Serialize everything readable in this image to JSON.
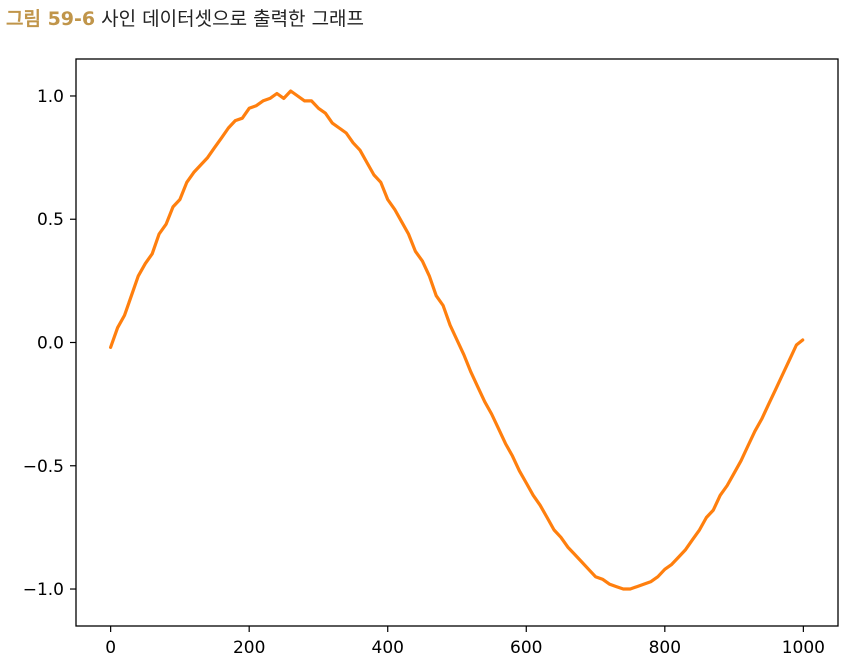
{
  "caption": {
    "figure_number": "그림 59-6",
    "text": "사인 데이터셋으로 출력한 그래프"
  },
  "chart_data": {
    "type": "line",
    "title": "",
    "xlabel": "",
    "ylabel": "",
    "xlim": [
      -50,
      1050
    ],
    "ylim": [
      -1.15,
      1.15
    ],
    "x_ticks": [
      0,
      200,
      400,
      600,
      800,
      1000
    ],
    "x_tick_labels": [
      "0",
      "200",
      "400",
      "600",
      "800",
      "1000"
    ],
    "y_ticks": [
      1.0,
      0.5,
      0.0,
      -0.5,
      -1.0
    ],
    "y_tick_labels": [
      "1.0",
      "0.5",
      "0.0",
      "−0.5",
      "−1.0"
    ],
    "grid": false,
    "legend": "none",
    "series": [
      {
        "color": "#ff7f0e",
        "x": [
          0,
          10,
          20,
          30,
          40,
          50,
          60,
          70,
          80,
          90,
          100,
          110,
          120,
          130,
          140,
          150,
          160,
          170,
          180,
          190,
          200,
          210,
          220,
          230,
          240,
          250,
          260,
          270,
          280,
          290,
          300,
          310,
          320,
          330,
          340,
          350,
          360,
          370,
          380,
          390,
          400,
          410,
          420,
          430,
          440,
          450,
          460,
          470,
          480,
          490,
          500,
          510,
          520,
          530,
          540,
          550,
          560,
          570,
          580,
          590,
          600,
          610,
          620,
          630,
          640,
          650,
          660,
          670,
          680,
          690,
          700,
          710,
          720,
          730,
          740,
          750,
          760,
          770,
          780,
          790,
          800,
          810,
          820,
          830,
          840,
          850,
          860,
          870,
          880,
          890,
          900,
          910,
          920,
          930,
          940,
          950,
          960,
          970,
          980,
          990,
          999
        ],
        "y": [
          -0.02,
          0.06,
          0.11,
          0.19,
          0.27,
          0.32,
          0.36,
          0.44,
          0.48,
          0.55,
          0.58,
          0.65,
          0.69,
          0.72,
          0.75,
          0.79,
          0.83,
          0.87,
          0.9,
          0.91,
          0.95,
          0.96,
          0.98,
          0.99,
          1.01,
          0.99,
          1.02,
          1.0,
          0.98,
          0.98,
          0.95,
          0.93,
          0.89,
          0.87,
          0.85,
          0.81,
          0.78,
          0.73,
          0.68,
          0.65,
          0.58,
          0.54,
          0.49,
          0.44,
          0.37,
          0.33,
          0.27,
          0.19,
          0.15,
          0.07,
          0.01,
          -0.05,
          -0.12,
          -0.18,
          -0.24,
          -0.29,
          -0.35,
          -0.41,
          -0.46,
          -0.52,
          -0.57,
          -0.62,
          -0.66,
          -0.71,
          -0.76,
          -0.79,
          -0.83,
          -0.86,
          -0.89,
          -0.92,
          -0.95,
          -0.96,
          -0.98,
          -0.99,
          -1.0,
          -1.0,
          -0.99,
          -0.98,
          -0.97,
          -0.95,
          -0.92,
          -0.9,
          -0.87,
          -0.84,
          -0.8,
          -0.76,
          -0.71,
          -0.68,
          -0.62,
          -0.58,
          -0.53,
          -0.48,
          -0.42,
          -0.36,
          -0.31,
          -0.25,
          -0.19,
          -0.13,
          -0.07,
          -0.01,
          0.01
        ]
      }
    ]
  }
}
